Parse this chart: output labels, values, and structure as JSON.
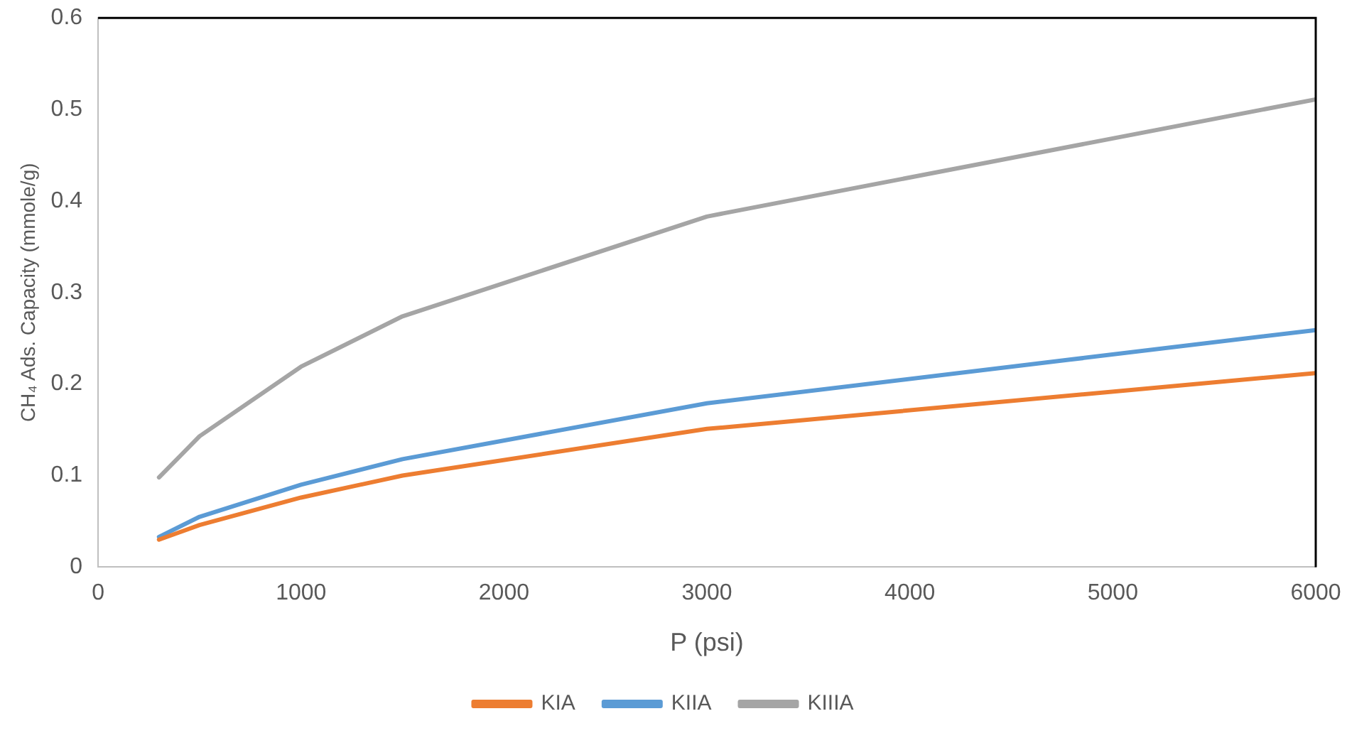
{
  "chart_data": {
    "type": "line",
    "xlabel": "P (psi)",
    "ylabel": "CH₄ Ads. Capacity (mmole/g)",
    "x": [
      300,
      500,
      1000,
      1500,
      3000,
      6000
    ],
    "series": [
      {
        "name": "KIA",
        "color": "#ed7d31",
        "values": [
          0.03,
          0.046,
          0.076,
          0.1,
          0.151,
          0.212
        ]
      },
      {
        "name": "KIIA",
        "color": "#5b9bd5",
        "values": [
          0.033,
          0.055,
          0.09,
          0.118,
          0.179,
          0.259
        ]
      },
      {
        "name": "KIIIA",
        "color": "#a5a5a5",
        "values": [
          0.098,
          0.143,
          0.219,
          0.274,
          0.383,
          0.511
        ]
      }
    ],
    "xlim": [
      0,
      6000
    ],
    "xticks": [
      0,
      1000,
      2000,
      3000,
      4000,
      5000,
      6000
    ],
    "ylim": [
      0,
      0.6
    ],
    "yticks": [
      0,
      0.1,
      0.2,
      0.3,
      0.4,
      0.5,
      0.6
    ],
    "grid": false,
    "legend": "bottom",
    "marker": "none",
    "line_style": "solid"
  }
}
